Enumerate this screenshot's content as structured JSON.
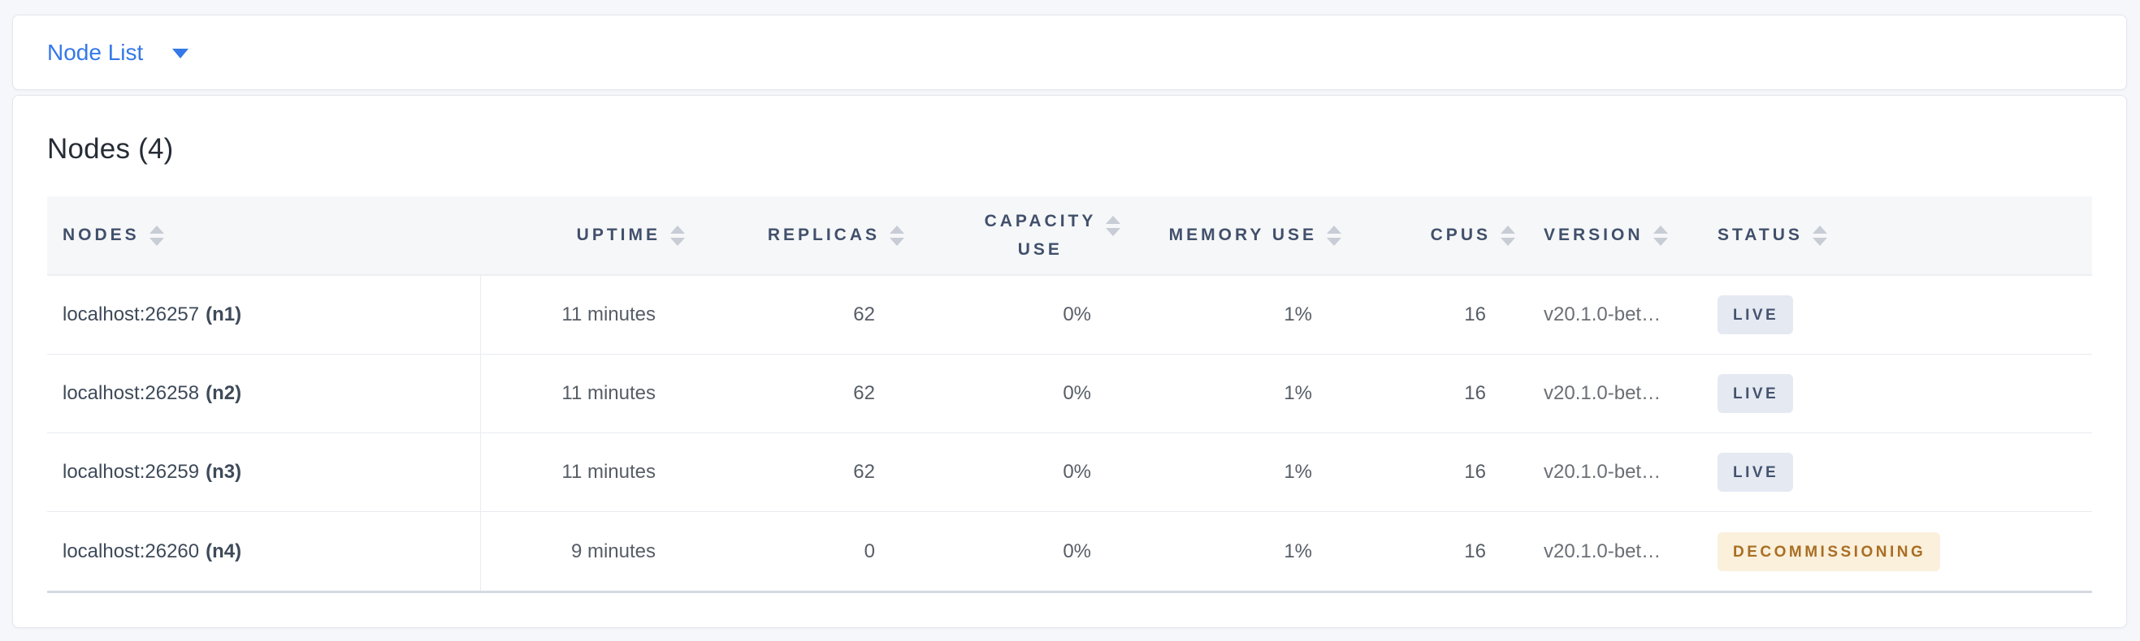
{
  "toolbar": {
    "dropdown_label": "Node List"
  },
  "main": {
    "title": "Nodes (4)",
    "table": {
      "columns": [
        {
          "key": "nodes",
          "label": "NODES",
          "align": "left",
          "sortable": true
        },
        {
          "key": "uptime",
          "label": "UPTIME",
          "align": "right",
          "sortable": true
        },
        {
          "key": "replicas",
          "label": "REPLICAS",
          "align": "right",
          "sortable": true
        },
        {
          "key": "capacity_use",
          "label": "CAPACITY USE",
          "align": "right",
          "sortable": true
        },
        {
          "key": "memory_use",
          "label": "MEMORY USE",
          "align": "right",
          "sortable": true
        },
        {
          "key": "cpus",
          "label": "CPUS",
          "align": "right",
          "sortable": true
        },
        {
          "key": "version",
          "label": "VERSION",
          "align": "left",
          "sortable": true
        },
        {
          "key": "status",
          "label": "STATUS",
          "align": "left",
          "sortable": true
        }
      ],
      "rows": [
        {
          "address": "localhost:26257",
          "node_id": "(n1)",
          "uptime": "11 minutes",
          "replicas": "62",
          "capacity_use": "0%",
          "memory_use": "1%",
          "cpus": "16",
          "version": "v20.1.0-bet…",
          "status": "LIVE",
          "status_type": "live"
        },
        {
          "address": "localhost:26258",
          "node_id": "(n2)",
          "uptime": "11 minutes",
          "replicas": "62",
          "capacity_use": "0%",
          "memory_use": "1%",
          "cpus": "16",
          "version": "v20.1.0-bet…",
          "status": "LIVE",
          "status_type": "live"
        },
        {
          "address": "localhost:26259",
          "node_id": "(n3)",
          "uptime": "11 minutes",
          "replicas": "62",
          "capacity_use": "0%",
          "memory_use": "1%",
          "cpus": "16",
          "version": "v20.1.0-bet…",
          "status": "LIVE",
          "status_type": "live"
        },
        {
          "address": "localhost:26260",
          "node_id": "(n4)",
          "uptime": "9 minutes",
          "replicas": "0",
          "capacity_use": "0%",
          "memory_use": "1%",
          "cpus": "16",
          "version": "v20.1.0-bet…",
          "status": "DECOMMISSIONING",
          "status_type": "decommissioning"
        }
      ]
    }
  },
  "icons": {
    "dropdown_caret": "caret-down-icon",
    "column_sort": "sort-arrows-icon"
  },
  "colors": {
    "page_background": "#F5F7FB",
    "link_blue": "#3578E9",
    "header_text": "#41506B",
    "badge_live_bg": "#E5E9F2",
    "badge_live_text": "#44536E",
    "badge_decommissioning_bg": "#FAF0DB",
    "badge_decommissioning_text": "#A96E24"
  }
}
